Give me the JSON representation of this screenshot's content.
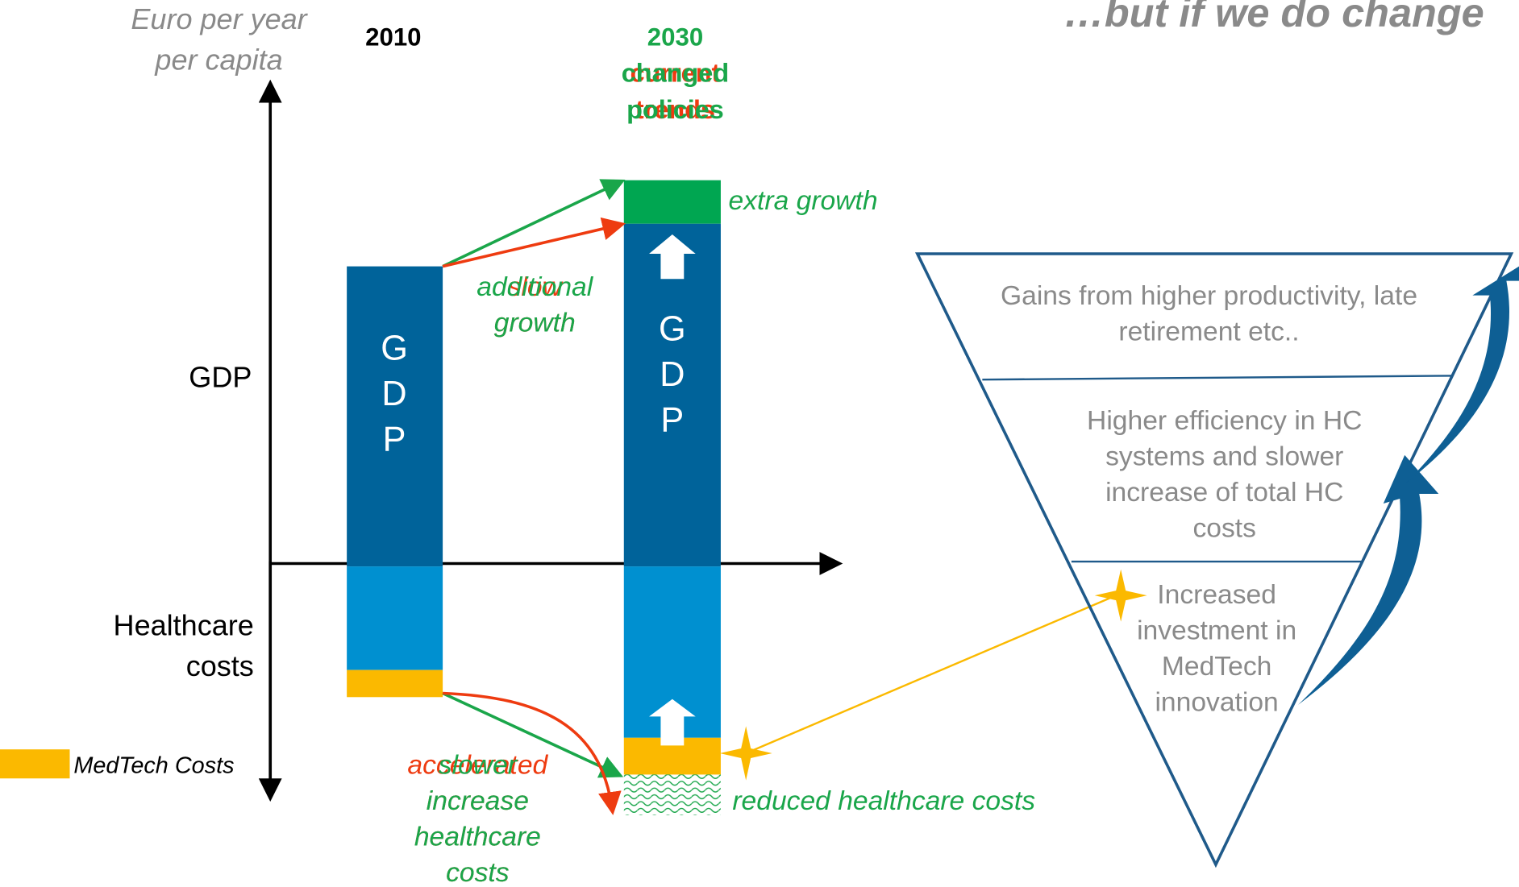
{
  "title": "…but if we do change",
  "axis": {
    "y_title": [
      "Euro per year",
      "per capita"
    ],
    "gdp": "GDP",
    "healthcare": [
      "Healthcare",
      "costs"
    ]
  },
  "legend": {
    "medtech": "MedTech Costs"
  },
  "years": {
    "left": "2010",
    "right": "2030"
  },
  "scenario": {
    "changed": [
      "changed",
      "policies"
    ],
    "current": [
      "current",
      "trends"
    ]
  },
  "bars": {
    "left_label": [
      "G",
      "D",
      "P"
    ],
    "right_label": [
      "G",
      "D",
      "P"
    ]
  },
  "annotations": {
    "extra_growth": "extra growth",
    "additional_growth": [
      "additional",
      "growth"
    ],
    "slow_growth": [
      "slow",
      "growth"
    ],
    "accelerated": [
      "accelerated",
      "increase",
      "healthcare",
      "costs"
    ],
    "slower": [
      "slower",
      "increase",
      "healthcare",
      "costs"
    ],
    "reduced": "reduced healthcare costs"
  },
  "triangle": {
    "top": [
      "Gains from higher productivity, late",
      "retirement  etc.."
    ],
    "middle": [
      "Higher efficiency in HC",
      "systems and slower",
      "increase of total HC",
      "costs"
    ],
    "bottom": [
      "Increased",
      "investment in",
      "MedTech",
      "innovation"
    ]
  }
}
